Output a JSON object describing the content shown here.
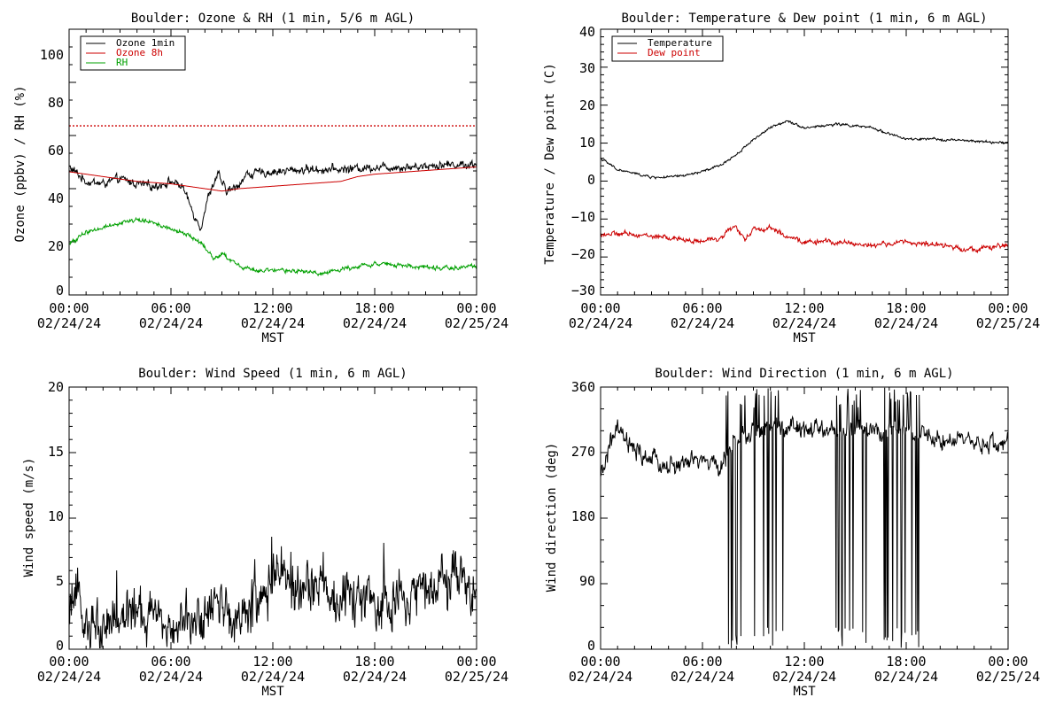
{
  "page": {
    "background": "#ffffff"
  },
  "chart_data": [
    {
      "type": "line",
      "title": "Boulder: Ozone & RH (1 min, 5/6 m AGL)",
      "xlabel": "MST",
      "ylabel": "Ozone (ppbv) / RH (%)",
      "x_ticks": [
        {
          "time": "00:00",
          "date": "02/24/24"
        },
        {
          "time": "06:00",
          "date": "02/24/24"
        },
        {
          "time": "12:00",
          "date": "02/24/24"
        },
        {
          "time": "18:00",
          "date": "02/24/24"
        },
        {
          "time": "00:00",
          "date": "02/25/24"
        }
      ],
      "xlim": [
        "2024-02-24 00:00",
        "2024-02-25 00:00"
      ],
      "ylim": [
        0,
        110
      ],
      "y_ticks": [
        "0",
        "20",
        "40",
        "60",
        "80",
        "100"
      ],
      "legend": "top-left",
      "series": [
        {
          "name": "Ozone 1min",
          "color": "#000000",
          "noise": 1.6,
          "x": [
            "2024-02-24 00:00",
            "2024-02-24 00:30",
            "2024-02-24 01:00",
            "2024-02-24 02:00",
            "2024-02-24 03:00",
            "2024-02-24 04:00",
            "2024-02-24 05:00",
            "2024-02-24 06:00",
            "2024-02-24 06:40",
            "2024-02-24 07:15",
            "2024-02-24 07:45",
            "2024-02-24 08:15",
            "2024-02-24 08:45",
            "2024-02-24 09:15",
            "2024-02-24 09:45",
            "2024-02-24 10:30",
            "2024-02-24 12:00",
            "2024-02-24 14:00",
            "2024-02-24 16:00",
            "2024-02-24 18:00",
            "2024-02-24 20:00",
            "2024-02-24 22:00",
            "2024-02-25 00:00"
          ],
          "y": [
            53,
            50,
            47,
            46,
            48,
            46,
            45,
            47,
            45,
            35,
            28,
            42,
            50,
            43,
            44,
            50,
            51,
            52,
            52,
            53,
            53,
            54,
            54
          ]
        },
        {
          "name": "Ozone 8h",
          "color": "#cc0000",
          "noise": 0,
          "x": [
            "2024-02-24 00:00",
            "2024-02-24 02:00",
            "2024-02-24 04:00",
            "2024-02-24 06:00",
            "2024-02-24 08:00",
            "2024-02-24 09:00",
            "2024-02-24 10:00",
            "2024-02-24 12:00",
            "2024-02-24 14:00",
            "2024-02-24 16:00",
            "2024-02-24 17:00",
            "2024-02-24 18:00",
            "2024-02-24 20:00",
            "2024-02-24 22:00",
            "2024-02-25 00:00"
          ],
          "y": [
            51,
            49,
            47,
            46,
            44,
            43,
            44,
            45,
            46,
            47,
            49,
            50,
            51,
            52,
            53
          ]
        },
        {
          "name": "RH",
          "color": "#00a000",
          "noise": 0.8,
          "x": [
            "2024-02-24 00:00",
            "2024-02-24 01:00",
            "2024-02-24 02:00",
            "2024-02-24 03:00",
            "2024-02-24 04:00",
            "2024-02-24 05:00",
            "2024-02-24 06:00",
            "2024-02-24 07:00",
            "2024-02-24 08:00",
            "2024-02-24 08:30",
            "2024-02-24 09:00",
            "2024-02-24 10:00",
            "2024-02-24 11:00",
            "2024-02-24 13:00",
            "2024-02-24 15:00",
            "2024-02-24 17:00",
            "2024-02-24 18:00",
            "2024-02-24 20:00",
            "2024-02-24 22:00",
            "2024-02-25 00:00"
          ],
          "y": [
            21,
            26,
            28,
            30,
            31,
            30,
            27,
            25,
            20,
            15,
            17,
            12,
            10,
            10,
            9,
            12,
            13,
            12,
            11,
            12
          ]
        }
      ],
      "reference_lines": [
        {
          "y": 70,
          "color": "#cc0000",
          "style": "dotted"
        }
      ]
    },
    {
      "type": "line",
      "title": "Boulder: Temperature & Dew point (1 min, 6 m AGL)",
      "xlabel": "MST",
      "ylabel": "Temperature / Dew point (C)",
      "x_ticks": [
        {
          "time": "00:00",
          "date": "02/24/24"
        },
        {
          "time": "06:00",
          "date": "02/24/24"
        },
        {
          "time": "12:00",
          "date": "02/24/24"
        },
        {
          "time": "18:00",
          "date": "02/24/24"
        },
        {
          "time": "00:00",
          "date": "02/25/24"
        }
      ],
      "xlim": [
        "2024-02-24 00:00",
        "2024-02-25 00:00"
      ],
      "ylim": [
        -30,
        40
      ],
      "y_ticks": [
        "−30",
        "−20",
        "−10",
        "0",
        "10",
        "20",
        "30",
        "40"
      ],
      "legend": "top-left",
      "series": [
        {
          "name": "Temperature",
          "color": "#000000",
          "noise": 0.3,
          "x": [
            "2024-02-24 00:00",
            "2024-02-24 01:00",
            "2024-02-24 02:00",
            "2024-02-24 03:00",
            "2024-02-24 04:00",
            "2024-02-24 05:00",
            "2024-02-24 06:00",
            "2024-02-24 07:00",
            "2024-02-24 08:00",
            "2024-02-24 09:00",
            "2024-02-24 10:00",
            "2024-02-24 11:00",
            "2024-02-24 12:00",
            "2024-02-24 14:00",
            "2024-02-24 16:00",
            "2024-02-24 18:00",
            "2024-02-24 20:00",
            "2024-02-24 22:00",
            "2024-02-25 00:00"
          ],
          "y": [
            6,
            3,
            2,
            1,
            1,
            1.5,
            2.5,
            4,
            7,
            11,
            14,
            16,
            14,
            15,
            14,
            11,
            11,
            10.5,
            10
          ]
        },
        {
          "name": "Dew point",
          "color": "#cc0000",
          "noise": 0.6,
          "x": [
            "2024-02-24 00:00",
            "2024-02-24 02:00",
            "2024-02-24 04:00",
            "2024-02-24 06:00",
            "2024-02-24 07:00",
            "2024-02-24 07:30",
            "2024-02-24 08:00",
            "2024-02-24 08:30",
            "2024-02-24 09:00",
            "2024-02-24 09:30",
            "2024-02-24 10:00",
            "2024-02-24 11:00",
            "2024-02-24 12:00",
            "2024-02-24 14:00",
            "2024-02-24 16:00",
            "2024-02-24 18:00",
            "2024-02-24 20:00",
            "2024-02-24 22:00",
            "2024-02-25 00:00"
          ],
          "y": [
            -14,
            -14,
            -15,
            -16,
            -15,
            -13,
            -12,
            -16,
            -12,
            -13,
            -12,
            -15,
            -16,
            -16,
            -17,
            -16,
            -17,
            -18,
            -17
          ]
        }
      ]
    },
    {
      "type": "line",
      "title": "Boulder: Wind Speed (1 min, 6 m AGL)",
      "xlabel": "MST",
      "ylabel": "Wind speed (m/s)",
      "x_ticks": [
        {
          "time": "00:00",
          "date": "02/24/24"
        },
        {
          "time": "06:00",
          "date": "02/24/24"
        },
        {
          "time": "12:00",
          "date": "02/24/24"
        },
        {
          "time": "18:00",
          "date": "02/24/24"
        },
        {
          "time": "00:00",
          "date": "02/25/24"
        }
      ],
      "xlim": [
        "2024-02-24 00:00",
        "2024-02-25 00:00"
      ],
      "ylim": [
        0,
        20
      ],
      "y_ticks": [
        "0",
        "5",
        "10",
        "15",
        "20"
      ],
      "series": [
        {
          "color": "#000000",
          "noise": 1.8,
          "x": [
            "2024-02-24 00:00",
            "2024-02-24 00:30",
            "2024-02-24 01:00",
            "2024-02-24 02:00",
            "2024-02-24 04:00",
            "2024-02-24 06:00",
            "2024-02-24 08:00",
            "2024-02-24 08:40",
            "2024-02-24 09:30",
            "2024-02-24 10:30",
            "2024-02-24 11:00",
            "2024-02-24 12:00",
            "2024-02-24 13:00",
            "2024-02-24 14:00",
            "2024-02-24 16:00",
            "2024-02-24 18:00",
            "2024-02-24 20:00",
            "2024-02-24 21:30",
            "2024-02-24 22:30",
            "2024-02-25 00:00"
          ],
          "y": [
            2,
            4,
            2,
            2,
            2.5,
            2.5,
            2,
            4,
            2,
            2.5,
            4,
            5.5,
            5,
            4.5,
            4,
            3.5,
            4,
            6,
            6,
            4
          ]
        }
      ]
    },
    {
      "type": "line",
      "title": "Boulder: Wind Direction (1 min, 6 m AGL)",
      "xlabel": "MST",
      "ylabel": "Wind direction (deg)",
      "x_ticks": [
        {
          "time": "00:00",
          "date": "02/24/24"
        },
        {
          "time": "06:00",
          "date": "02/24/24"
        },
        {
          "time": "12:00",
          "date": "02/24/24"
        },
        {
          "time": "18:00",
          "date": "02/24/24"
        },
        {
          "time": "00:00",
          "date": "02/25/24"
        }
      ],
      "xlim": [
        "2024-02-24 00:00",
        "2024-02-25 00:00"
      ],
      "ylim": [
        0,
        360
      ],
      "y_ticks": [
        "0",
        "90",
        "180",
        "270",
        "360"
      ],
      "series": [
        {
          "color": "#000000",
          "noise": 12,
          "x": [
            "2024-02-24 00:00",
            "2024-02-24 00:30",
            "2024-02-24 01:00",
            "2024-02-24 02:00",
            "2024-02-24 04:00",
            "2024-02-24 06:00",
            "2024-02-24 07:00",
            "2024-02-24 08:00",
            "2024-02-24 10:00",
            "2024-02-24 12:00",
            "2024-02-24 14:00",
            "2024-02-24 16:00",
            "2024-02-24 18:00",
            "2024-02-24 20:00",
            "2024-02-24 22:00",
            "2024-02-25 00:00"
          ],
          "y": [
            230,
            280,
            300,
            270,
            250,
            260,
            250,
            290,
            310,
            300,
            300,
            300,
            300,
            290,
            280,
            285
          ]
        }
      ],
      "wrap_spans": [
        {
          "from": "2024-02-24 07:20",
          "to": "2024-02-24 08:30"
        },
        {
          "from": "2024-02-24 09:00",
          "to": "2024-02-24 10:50"
        },
        {
          "from": "2024-02-24 13:50",
          "to": "2024-02-24 15:45"
        },
        {
          "from": "2024-02-24 16:40",
          "to": "2024-02-24 18:50"
        }
      ]
    }
  ]
}
